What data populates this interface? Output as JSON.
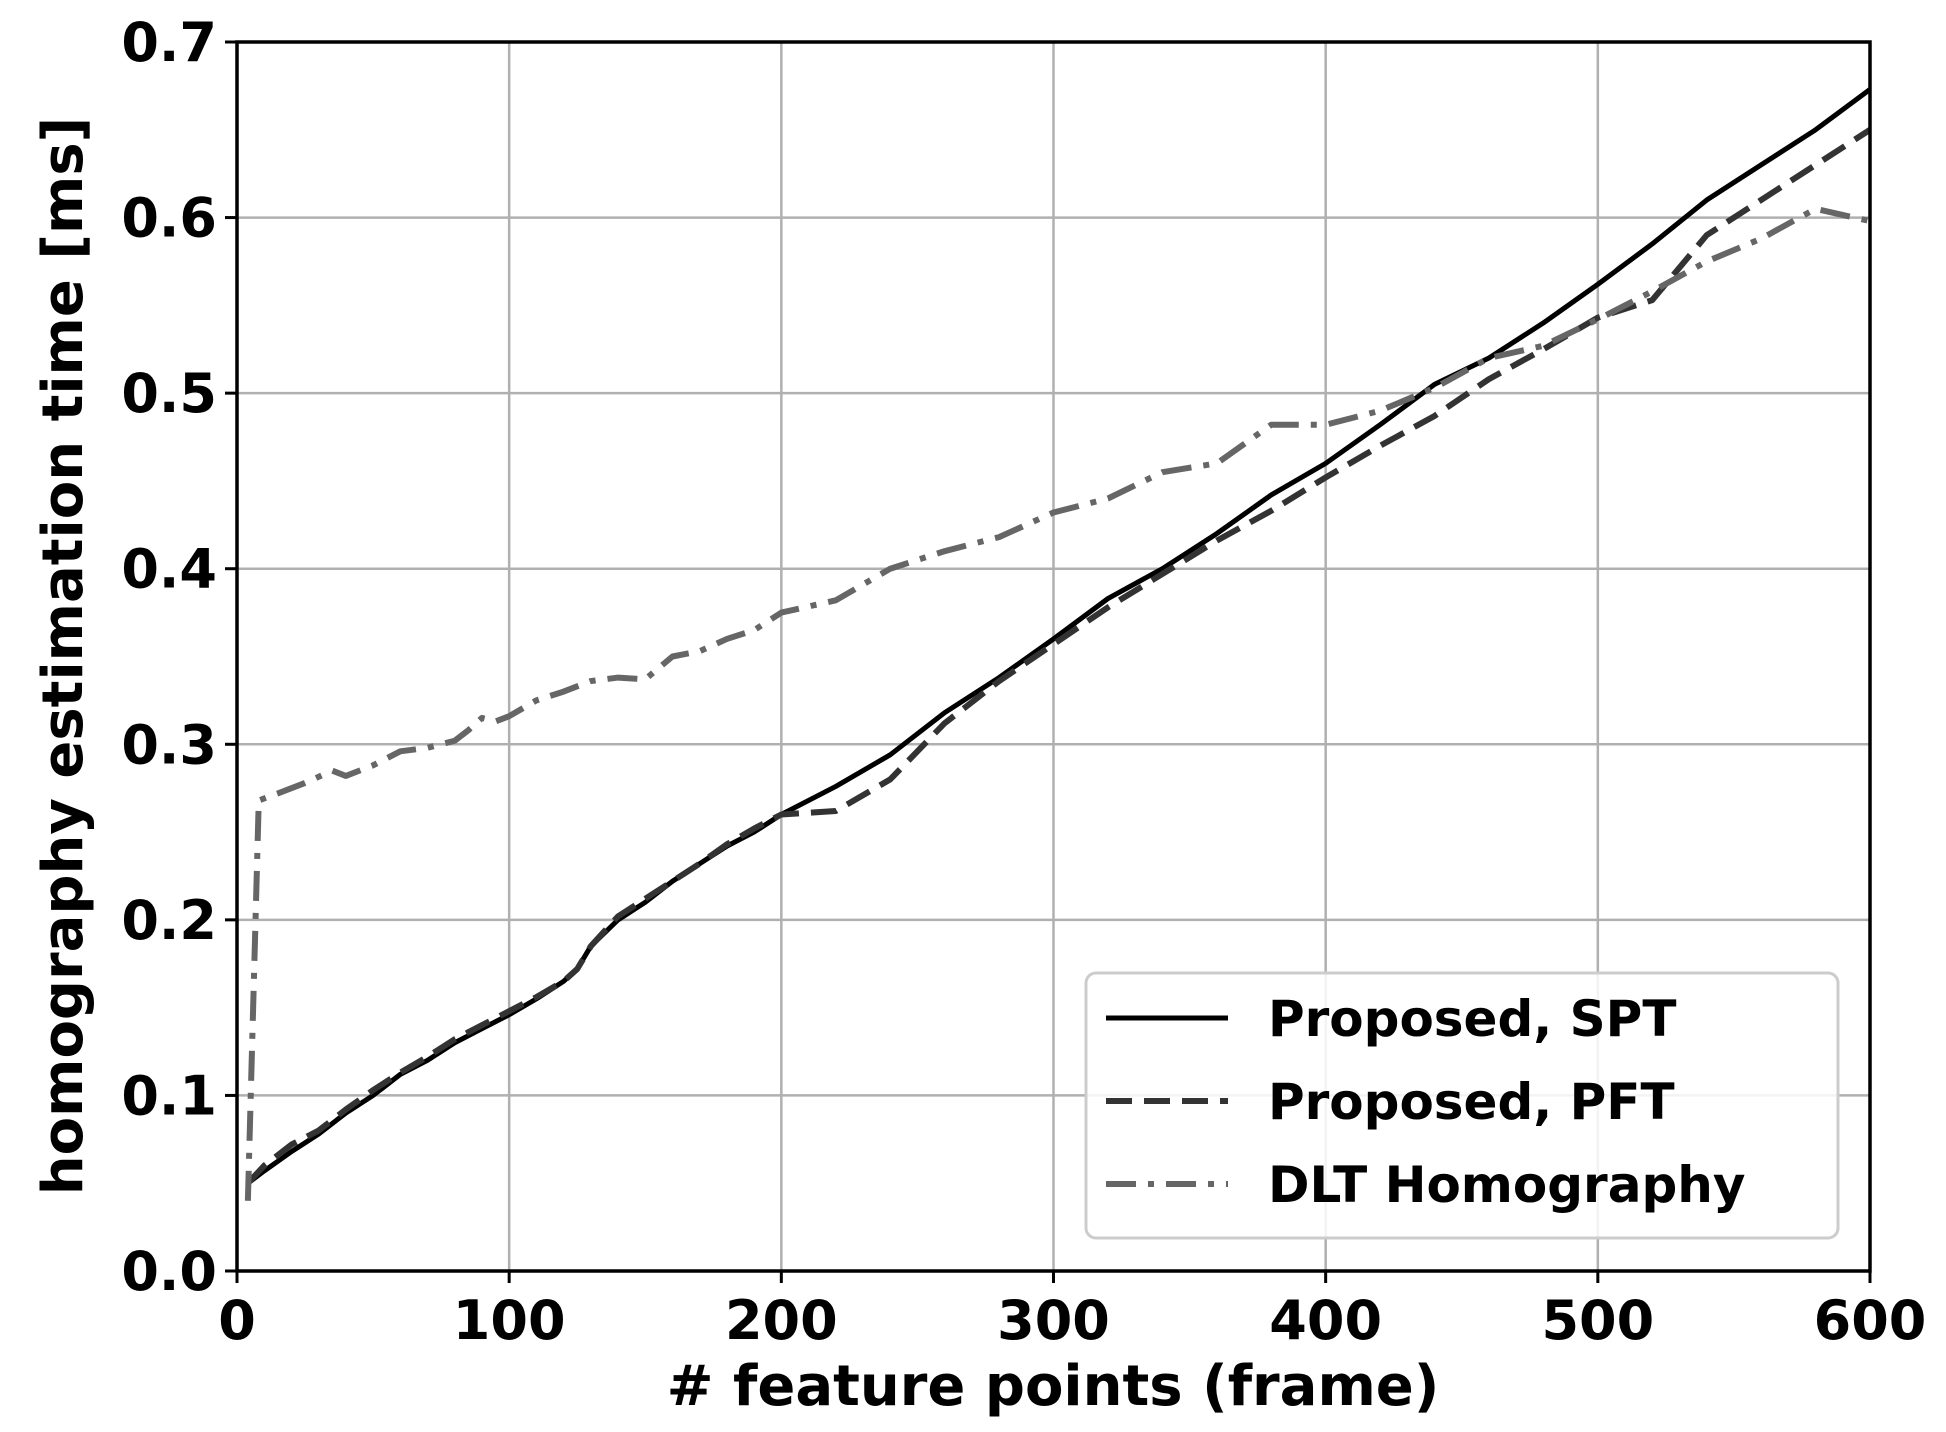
{
  "chart_data": {
    "type": "line",
    "title": "",
    "xlabel": "# feature points (frame)",
    "ylabel": "homography estimation time [ms]",
    "xlim": [
      0,
      600
    ],
    "ylim": [
      0,
      0.7
    ],
    "xticks": [
      0,
      100,
      200,
      300,
      400,
      500,
      600
    ],
    "xtick_labels": [
      "0",
      "100",
      "200",
      "300",
      "400",
      "500",
      "600"
    ],
    "yticks": [
      0.0,
      0.1,
      0.2,
      0.3,
      0.4,
      0.5,
      0.6,
      0.7
    ],
    "ytick_labels": [
      "0.0",
      "0.1",
      "0.2",
      "0.3",
      "0.4",
      "0.5",
      "0.6",
      "0.7"
    ],
    "grid": true,
    "legend_position": "bottom-right",
    "series": [
      {
        "name": "Proposed, SPT",
        "color": "#000000",
        "style": "solid",
        "x": [
          4,
          10,
          20,
          30,
          40,
          50,
          60,
          70,
          80,
          90,
          100,
          110,
          120,
          125,
          130,
          140,
          150,
          160,
          170,
          180,
          190,
          200,
          220,
          240,
          260,
          280,
          300,
          320,
          340,
          360,
          380,
          400,
          420,
          440,
          460,
          480,
          500,
          520,
          540,
          560,
          580,
          600
        ],
        "y": [
          0.05,
          0.057,
          0.068,
          0.078,
          0.09,
          0.1,
          0.112,
          0.12,
          0.13,
          0.138,
          0.146,
          0.155,
          0.165,
          0.172,
          0.185,
          0.2,
          0.21,
          0.222,
          0.232,
          0.242,
          0.25,
          0.26,
          0.276,
          0.294,
          0.318,
          0.338,
          0.36,
          0.383,
          0.4,
          0.42,
          0.442,
          0.46,
          0.482,
          0.505,
          0.52,
          0.54,
          0.562,
          0.585,
          0.61,
          0.63,
          0.65,
          0.673
        ]
      },
      {
        "name": "Proposed, PFT",
        "color": "#333333",
        "style": "dashed",
        "x": [
          4,
          10,
          20,
          30,
          40,
          50,
          60,
          70,
          80,
          90,
          100,
          110,
          120,
          125,
          130,
          140,
          150,
          160,
          170,
          180,
          190,
          200,
          220,
          240,
          260,
          280,
          300,
          320,
          340,
          360,
          380,
          400,
          420,
          440,
          460,
          480,
          500,
          520,
          540,
          560,
          580,
          600
        ],
        "y": [
          0.05,
          0.06,
          0.072,
          0.08,
          0.092,
          0.103,
          0.113,
          0.122,
          0.132,
          0.14,
          0.148,
          0.156,
          0.165,
          0.172,
          0.185,
          0.202,
          0.212,
          0.222,
          0.232,
          0.243,
          0.252,
          0.26,
          0.262,
          0.28,
          0.312,
          0.336,
          0.357,
          0.378,
          0.397,
          0.416,
          0.433,
          0.452,
          0.47,
          0.487,
          0.508,
          0.525,
          0.543,
          0.553,
          0.59,
          0.61,
          0.63,
          0.65
        ]
      },
      {
        "name": "DLT Homography",
        "color": "#666666",
        "style": "dashdot",
        "x": [
          4,
          8,
          15,
          25,
          35,
          40,
          50,
          60,
          70,
          80,
          85,
          90,
          95,
          100,
          110,
          120,
          130,
          140,
          150,
          160,
          170,
          180,
          190,
          200,
          220,
          240,
          260,
          280,
          300,
          320,
          340,
          360,
          380,
          400,
          420,
          440,
          460,
          480,
          500,
          520,
          540,
          560,
          580,
          600
        ],
        "y": [
          0.04,
          0.268,
          0.272,
          0.278,
          0.285,
          0.282,
          0.288,
          0.296,
          0.298,
          0.302,
          0.308,
          0.315,
          0.313,
          0.316,
          0.325,
          0.33,
          0.336,
          0.338,
          0.337,
          0.35,
          0.353,
          0.36,
          0.365,
          0.375,
          0.382,
          0.4,
          0.41,
          0.418,
          0.432,
          0.44,
          0.455,
          0.46,
          0.482,
          0.482,
          0.49,
          0.503,
          0.52,
          0.527,
          0.542,
          0.558,
          0.575,
          0.588,
          0.605,
          0.598
        ]
      }
    ]
  }
}
